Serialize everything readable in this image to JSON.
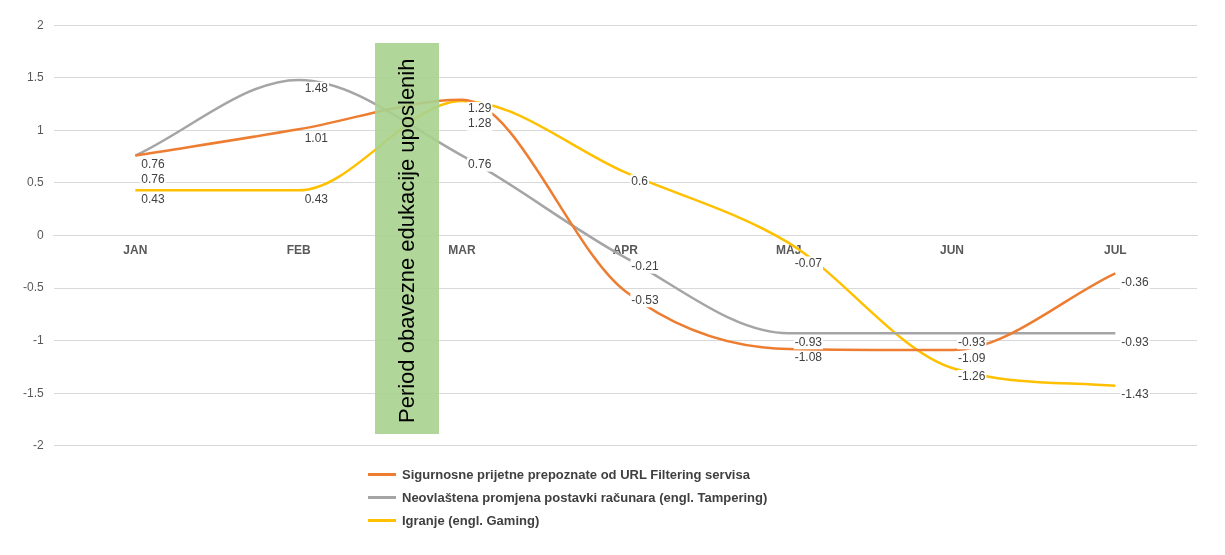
{
  "chart_data": {
    "type": "line",
    "categories": [
      "JAN",
      "FEB",
      "MAR",
      "APR",
      "MAJ",
      "JUN",
      "JUL"
    ],
    "series": [
      {
        "name": "Sigurnosne prijetne prepoznate od URL Filtering servisa",
        "color": "#ed7d31",
        "values": [
          0.76,
          1.01,
          1.29,
          -0.53,
          -1.08,
          -1.09,
          -0.36
        ]
      },
      {
        "name": "Neovlaštena promjena postavki računara (engl. Tampering)",
        "color": "#a5a5a5",
        "values": [
          0.76,
          1.48,
          0.76,
          -0.21,
          -0.93,
          -0.93,
          -0.93
        ]
      },
      {
        "name": "Igranje (engl. Gaming)",
        "color": "#ffc000",
        "values": [
          0.43,
          0.43,
          1.28,
          0.6,
          -0.07,
          -1.26,
          -1.43
        ]
      }
    ],
    "ylim": [
      -2,
      2
    ],
    "yticks": [
      -2,
      -1.5,
      -1,
      -0.5,
      0,
      0.5,
      1,
      1.5,
      2
    ],
    "grid": "y",
    "legend": "bottom",
    "data_labels": true,
    "marker": "none",
    "annotations": [
      "Period obavezne edukacije uposlenih"
    ]
  }
}
